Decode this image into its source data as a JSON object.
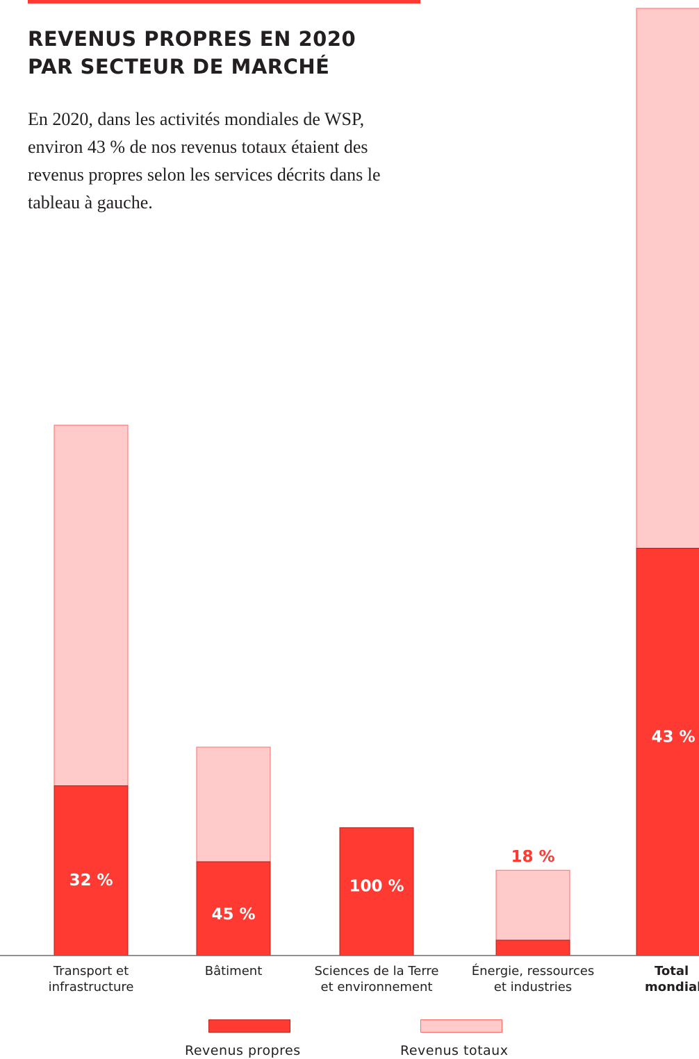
{
  "header": {
    "title_line1": "REVENUS PROPRES EN 2020",
    "title_line2": "PAR SECTEUR DE MARCHÉ",
    "intro": "En 2020, dans les activités mondiales de WSP, environ 43 % de nos revenus totaux étaient des revenus propres selon les services décrits dans le tableau à gauche."
  },
  "colors": {
    "accent": "#ff3a33",
    "light": "#ffcaca",
    "text": "#231f20"
  },
  "chart_data": {
    "type": "bar",
    "stacked": true,
    "categories": [
      [
        "Transport et",
        "infrastructure"
      ],
      [
        "Bâtiment"
      ],
      [
        "Sciences de la Terre",
        "et environnement"
      ],
      [
        "Énergie, ressources",
        "et industries"
      ],
      [
        "Total",
        "mondial"
      ]
    ],
    "series": [
      {
        "name": "Revenus propres",
        "values": [
          32,
          45,
          100,
          18,
          43
        ]
      },
      {
        "name": "Revenus totaux",
        "values": [
          100,
          100,
          100,
          100,
          100
        ]
      }
    ],
    "total_heights": [
      56,
      22,
      13.5,
      9,
      100
    ],
    "data_labels": [
      "32 %",
      "45 %",
      "100 %",
      "18 %",
      "43 %"
    ]
  },
  "legend": [
    {
      "label": "Revenus propres",
      "color": "#ff3a33"
    },
    {
      "label": "Revenus totaux",
      "color": "#ffcaca"
    }
  ]
}
